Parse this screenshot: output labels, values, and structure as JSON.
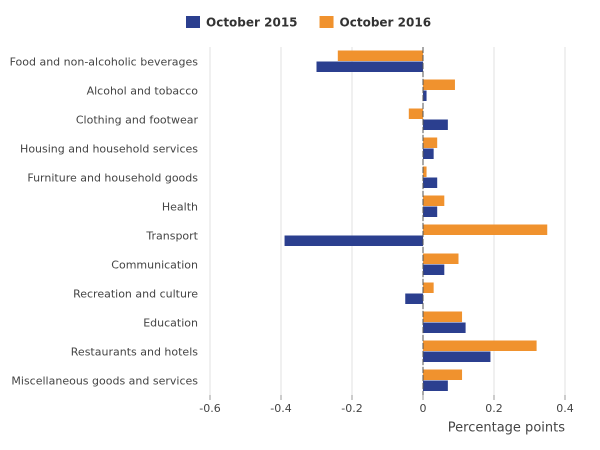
{
  "chart_data": {
    "type": "bar",
    "orientation": "horizontal",
    "categories": [
      "Food and non-alcoholic beverages",
      "Alcohol and tobacco",
      "Clothing and footwear",
      "Housing and household services",
      "Furniture and household goods",
      "Health",
      "Transport",
      "Communication",
      "Recreation and culture",
      "Education",
      "Restaurants and hotels",
      "Miscellaneous goods and services"
    ],
    "series": [
      {
        "name": "October 2015",
        "color": "#2b3f8f",
        "values": [
          -0.3,
          0.01,
          0.07,
          0.03,
          0.04,
          0.04,
          -0.39,
          0.06,
          -0.05,
          0.12,
          0.19,
          0.07
        ]
      },
      {
        "name": "October 2016",
        "color": "#f0922e",
        "values": [
          -0.24,
          0.09,
          -0.04,
          0.04,
          0.01,
          0.06,
          0.35,
          0.1,
          0.03,
          0.11,
          0.32,
          0.11
        ]
      }
    ],
    "x_label": "Percentage points",
    "xlim": [
      -0.6,
      0.4
    ],
    "xticks": [
      -0.6,
      -0.4,
      -0.2,
      0,
      0.2,
      0.4
    ],
    "grid": true,
    "legend": "top"
  }
}
